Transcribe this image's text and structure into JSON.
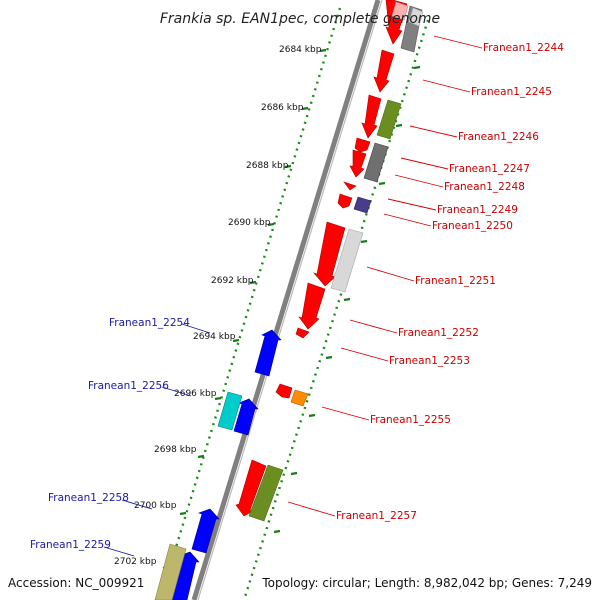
{
  "title": "Frankia sp. EAN1pec, complete genome",
  "footer": {
    "accession": "Accession: NC_009921",
    "topology": "Topology: circular; Length: 8,982,042 bp; Genes: 7,249"
  },
  "ticks": [
    "2684 kbp",
    "2686 kbp",
    "2688 kbp",
    "2690 kbp",
    "2692 kbp",
    "2694 kbp",
    "2696 kbp",
    "2698 kbp",
    "2700 kbp",
    "2702 kbp"
  ],
  "genes_right": [
    "Franean1_2244",
    "Franean1_2245",
    "Franean1_2246",
    "Franean1_2247",
    "Franean1_2248",
    "Franean1_2249",
    "Franean1_2250",
    "Franean1_2251",
    "Franean1_2252",
    "Franean1_2253",
    "Franean1_2255",
    "Franean1_2257"
  ],
  "genes_left": [
    "Franean1_2254",
    "Franean1_2256",
    "Franean1_2258",
    "Franean1_2259"
  ],
  "colors": {
    "forward_strand": "#ff0000",
    "reverse_strand": "#0000ff",
    "cog_grey": "#808080",
    "cog_lightgrey": "#d8d8d8",
    "cog_olive": "#6b8e23",
    "cog_purple": "#483d8b",
    "cog_orange": "#ff8c00",
    "cog_cyan": "#00cccc",
    "cog_khaki": "#bdb76b",
    "gc_dots": "#1a8a1a",
    "backbone": "#808080"
  }
}
